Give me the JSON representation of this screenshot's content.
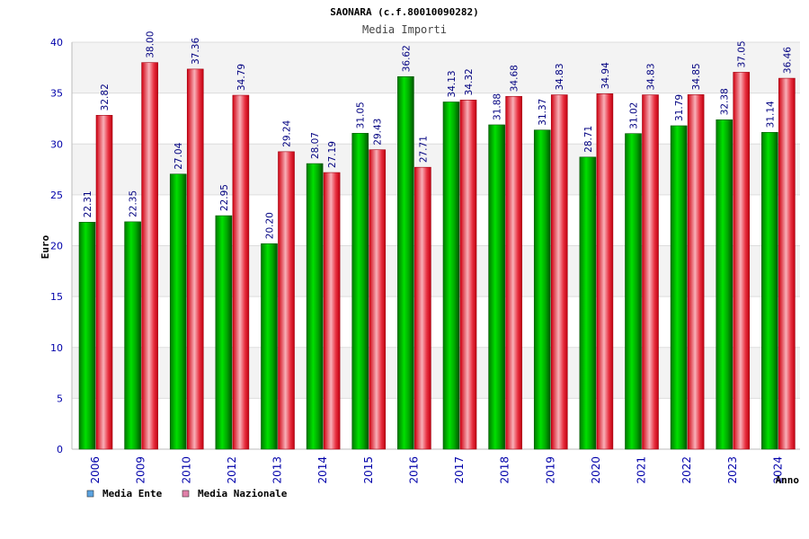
{
  "chart_data": {
    "type": "bar",
    "title": "SAONARA (c.f.80010090282)",
    "subtitle": "Media Importi",
    "ylabel": "Euro",
    "xlabel": "Anno",
    "ylim": [
      0,
      40
    ],
    "yticks": [
      0,
      5,
      10,
      15,
      20,
      25,
      30,
      35,
      40
    ],
    "categories": [
      "2006",
      "2009",
      "2010",
      "2012",
      "2013",
      "2014",
      "2015",
      "2016",
      "2017",
      "2018",
      "2019",
      "2020",
      "2021",
      "2022",
      "2023",
      "2024"
    ],
    "series": [
      {
        "name": "Media Ente",
        "values": [
          22.31,
          22.35,
          27.04,
          22.95,
          20.2,
          28.07,
          31.05,
          36.62,
          34.13,
          31.88,
          31.37,
          28.71,
          31.02,
          31.79,
          32.38,
          31.14
        ],
        "labels": [
          "22.31",
          "22.35",
          "27.04",
          "22.95",
          "20.20",
          "28.07",
          "31.05",
          "36.62",
          "34.13",
          "31.88",
          "31.37",
          "28.71",
          "31.02",
          "31.79",
          "32.38",
          "31.14"
        ],
        "color": "#00c000",
        "legend_color": "#5ba3e0"
      },
      {
        "name": "Media Nazionale",
        "values": [
          32.82,
          38.0,
          37.36,
          34.79,
          29.24,
          27.19,
          29.43,
          27.71,
          34.32,
          34.68,
          34.83,
          34.94,
          34.83,
          34.85,
          37.05,
          36.46
        ],
        "labels": [
          "32.82",
          "38.00",
          "37.36",
          "34.79",
          "29.24",
          "27.19",
          "29.43",
          "27.71",
          "34.32",
          "34.68",
          "34.83",
          "34.94",
          "34.83",
          "34.85",
          "37.05",
          "36.46"
        ],
        "color": "#e8101a",
        "legend_color": "#e080a8"
      }
    ],
    "grid": true,
    "legend": "bottom-left"
  }
}
